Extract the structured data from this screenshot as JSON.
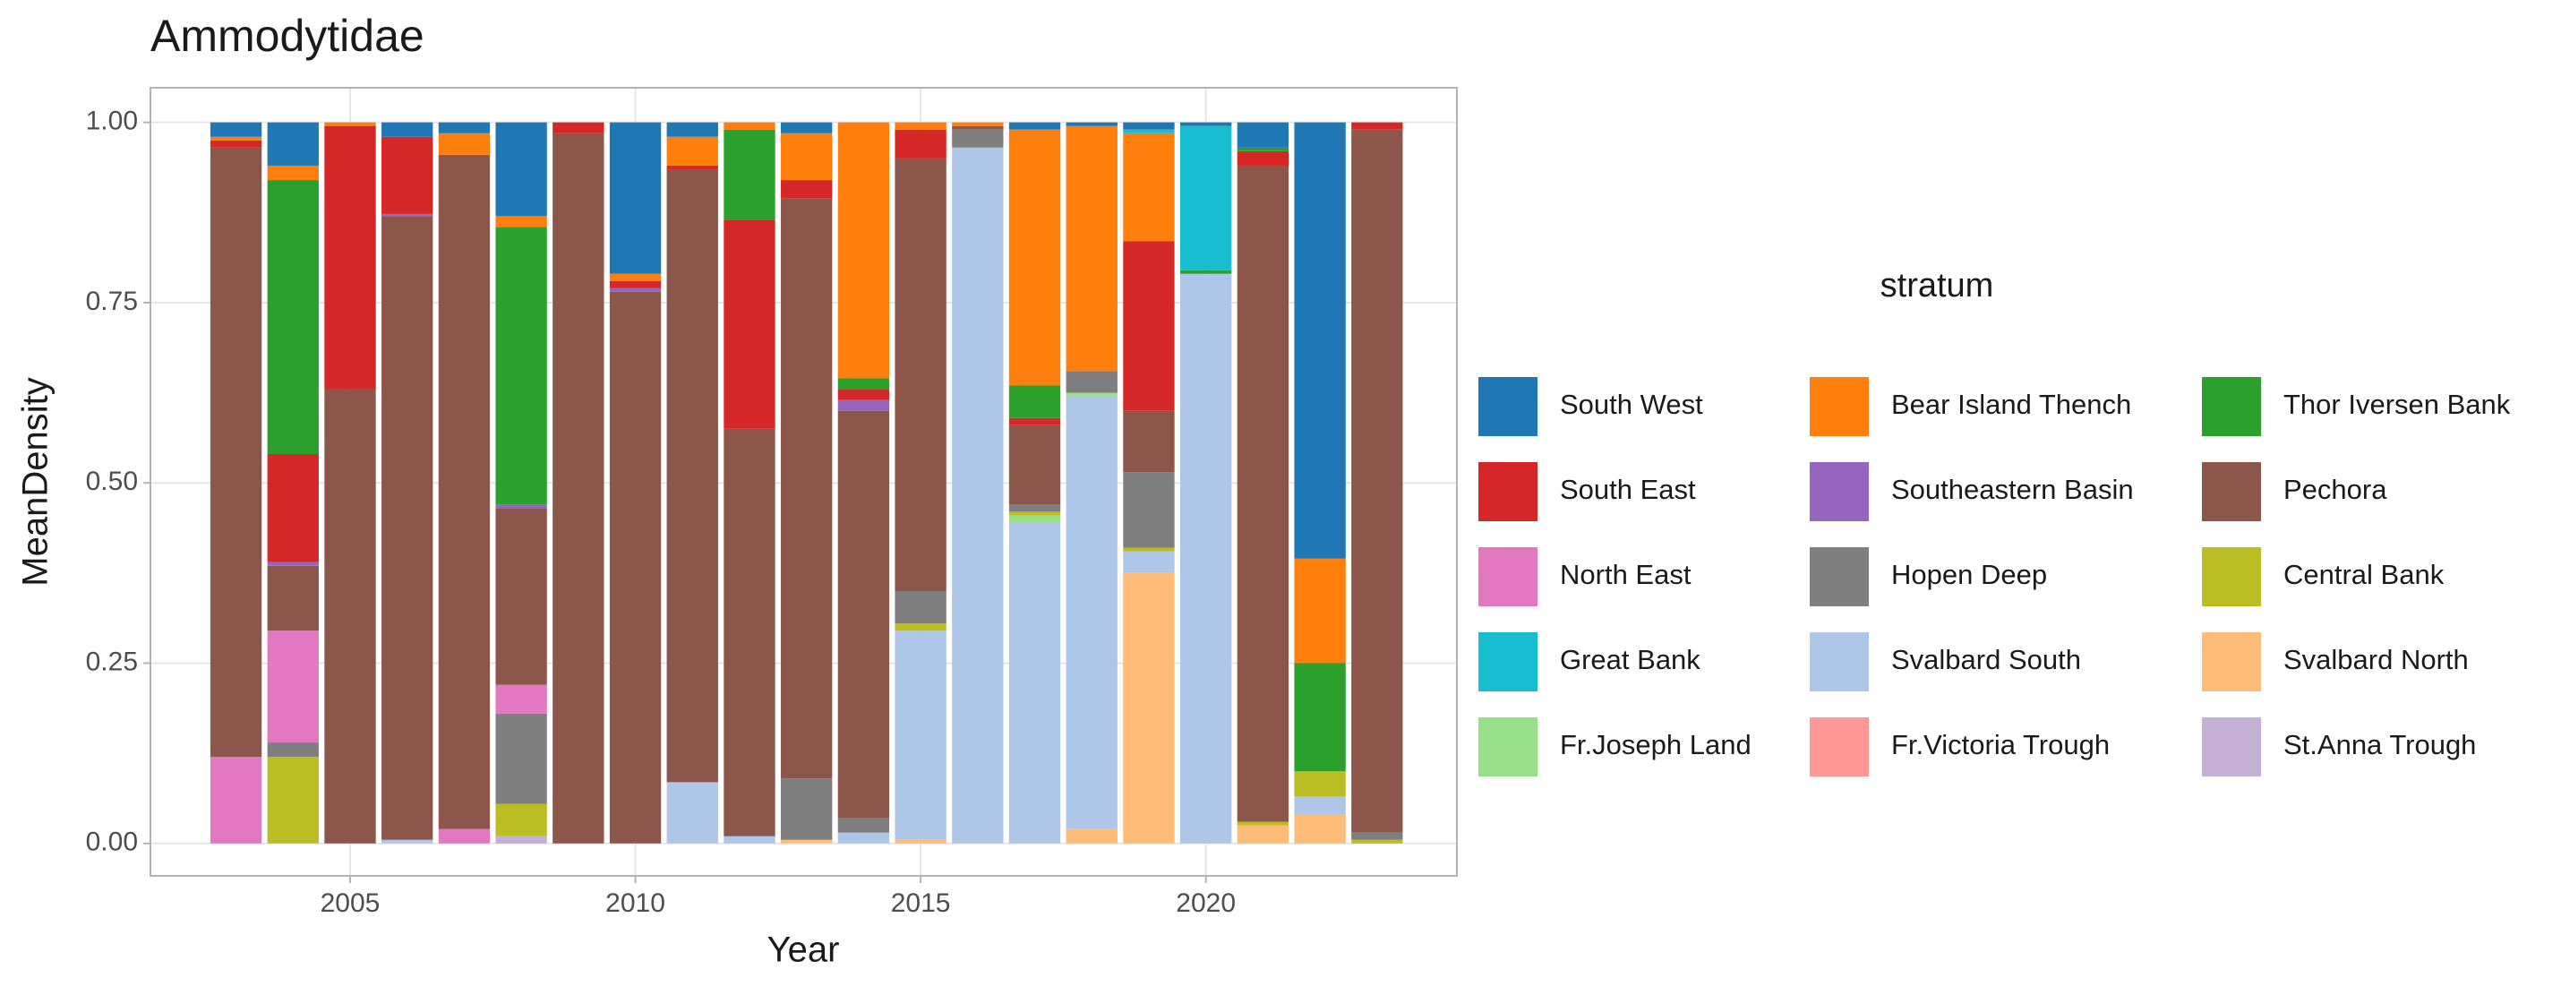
{
  "chart_data": {
    "type": "stacked-bar",
    "title": "Ammodytidae",
    "x_label": "Year",
    "y_label": "MeanDensity",
    "legend_title": "stratum",
    "legend_position": "right",
    "grid": true,
    "x": [
      2003,
      2004,
      2005,
      2006,
      2007,
      2008,
      2009,
      2010,
      2011,
      2012,
      2013,
      2014,
      2015,
      2016,
      2017,
      2018,
      2019,
      2020,
      2021,
      2022,
      2023
    ],
    "xlim": [
      2001.5,
      2024.4
    ],
    "xticks": [
      2005,
      2010,
      2015,
      2020
    ],
    "ylim": [
      -0.045,
      1.048
    ],
    "yticks": [
      {
        "value": 0,
        "label": "0.00"
      },
      {
        "value": 0.25,
        "label": "0.25"
      },
      {
        "value": 0.5,
        "label": "0.50"
      },
      {
        "value": 0.75,
        "label": "0.75"
      },
      {
        "value": 1,
        "label": "1.00"
      }
    ],
    "series": [
      {
        "name": "South West",
        "color": "#1f77b4",
        "values": [
          0.02,
          0.06,
          0,
          0.02,
          0.015,
          0.13,
          0,
          0.21,
          0.02,
          0,
          0.015,
          0,
          0,
          0,
          0.01,
          0.005,
          0.01,
          0.005,
          0.035,
          0.605,
          0
        ]
      },
      {
        "name": "South East",
        "color": "#d62728",
        "values": [
          0.01,
          0.15,
          0.365,
          0.107,
          0,
          0,
          0.015,
          0.01,
          0.005,
          0.29,
          0.025,
          0.015,
          0.04,
          0,
          0.01,
          0,
          0.235,
          0,
          0.02,
          0,
          0.01
        ]
      },
      {
        "name": "North East",
        "color": "#e377c2",
        "values": [
          0.12,
          0.155,
          0,
          0,
          0.02,
          0.04,
          0,
          0,
          0,
          0,
          0,
          0,
          0,
          0,
          0,
          0,
          0,
          0,
          0,
          0,
          0
        ]
      },
      {
        "name": "Great Bank",
        "color": "#17becf",
        "values": [
          0,
          0,
          0,
          0,
          0,
          0,
          0,
          0,
          0,
          0,
          0,
          0,
          0,
          0,
          0,
          0,
          0.005,
          0.2,
          0,
          0,
          0
        ]
      },
      {
        "name": "Fr.Joseph Land",
        "color": "#98df8a",
        "values": [
          0,
          0,
          0,
          0,
          0,
          0,
          0,
          0,
          0,
          0,
          0,
          0,
          0,
          0,
          0.01,
          0.005,
          0,
          0,
          0,
          0,
          0
        ]
      },
      {
        "name": "Bear Island Thench",
        "color": "#ff7f0e",
        "values": [
          0.005,
          0.02,
          0.005,
          0,
          0.03,
          0.015,
          0,
          0.01,
          0.04,
          0.01,
          0.065,
          0.355,
          0.01,
          0.005,
          0.355,
          0.34,
          0.15,
          0,
          0,
          0.145,
          0
        ]
      },
      {
        "name": "Southeastern Basin",
        "color": "#9467bd",
        "values": [
          0,
          0.005,
          0,
          0.003,
          0,
          0.005,
          0,
          0.005,
          0,
          0,
          0,
          0.015,
          0,
          0,
          0,
          0,
          0,
          0,
          0,
          0,
          0
        ]
      },
      {
        "name": "Hopen Deep",
        "color": "#7f7f7f",
        "values": [
          0,
          0.02,
          0,
          0,
          0,
          0.125,
          0,
          0,
          0,
          0,
          0.085,
          0.02,
          0.045,
          0.025,
          0.01,
          0.03,
          0.105,
          0,
          0,
          0,
          0.01
        ]
      },
      {
        "name": "Svalbard South",
        "color": "#aec7e8",
        "values": [
          0,
          0,
          0,
          0.005,
          0,
          0,
          0,
          0,
          0.085,
          0.01,
          0,
          0.015,
          0.29,
          0.965,
          0.445,
          0.6,
          0.03,
          0.79,
          0,
          0.025,
          0
        ]
      },
      {
        "name": "Fr.Victoria Trough",
        "color": "#ff9896",
        "values": [
          0,
          0,
          0,
          0,
          0,
          0,
          0,
          0,
          0,
          0,
          0,
          0,
          0,
          0,
          0,
          0,
          0,
          0,
          0,
          0,
          0
        ]
      },
      {
        "name": "Thor Iversen Bank",
        "color": "#2ca02c",
        "values": [
          0,
          0.38,
          0,
          0,
          0,
          0.385,
          0,
          0,
          0,
          0.125,
          0,
          0.015,
          0,
          0,
          0.045,
          0,
          0,
          0.005,
          0.005,
          0.15,
          0
        ]
      },
      {
        "name": "Pechora",
        "color": "#8c564b",
        "values": [
          0.845,
          0.09,
          0.63,
          0.865,
          0.935,
          0.245,
          0.985,
          0.765,
          0.85,
          0.565,
          0.805,
          0.565,
          0.6,
          0.005,
          0.11,
          0,
          0.085,
          0,
          0.91,
          0,
          0.975
        ]
      },
      {
        "name": "Central Bank",
        "color": "#bcbd22",
        "values": [
          0,
          0.12,
          0,
          0,
          0,
          0.045,
          0,
          0,
          0,
          0,
          0,
          0,
          0.01,
          0,
          0.005,
          0,
          0.005,
          0,
          0.005,
          0.035,
          0.005
        ]
      },
      {
        "name": "Svalbard North",
        "color": "#ffbb78",
        "values": [
          0,
          0,
          0,
          0,
          0,
          0,
          0,
          0,
          0,
          0,
          0.005,
          0,
          0.005,
          0,
          0,
          0.02,
          0.375,
          0,
          0.025,
          0.04,
          0
        ]
      },
      {
        "name": "St.Anna Trough",
        "color": "#c5b0d5",
        "values": [
          0,
          0,
          0,
          0,
          0,
          0.01,
          0,
          0,
          0,
          0,
          0,
          0,
          0,
          0,
          0,
          0,
          0,
          0,
          0,
          0,
          0
        ]
      }
    ]
  }
}
